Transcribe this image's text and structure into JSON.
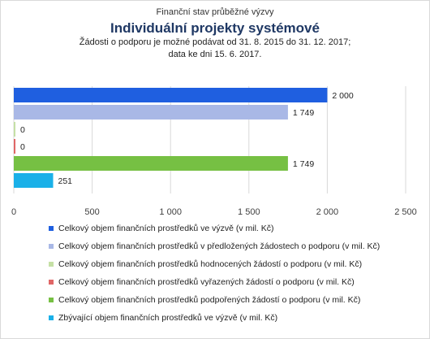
{
  "header": {
    "supertitle": "Finanční stav průběžné výzvy",
    "title": "Individuální projekty systémové",
    "subtitle_line1": "Žádosti o podporu je možné  podávat od 31. 8. 2015 do 31. 12. 2017;",
    "subtitle_line2": "data ke dni 15. 6. 2017."
  },
  "chart_data": {
    "type": "bar",
    "orientation": "horizontal",
    "xlim": [
      0,
      2500
    ],
    "xticks": [
      0,
      500,
      1000,
      1500,
      2000,
      2500
    ],
    "xtick_labels": [
      "0",
      "500",
      "1 000",
      "1 500",
      "2 000",
      "2 500"
    ],
    "grid": "vertical",
    "legend_position": "bottom",
    "series": [
      {
        "name": "Celkový objem finančních prostředků ve výzvě (v mil. Kč)",
        "value": 2000,
        "label": "2 000",
        "color": "#1f5fe0"
      },
      {
        "name": "Celkový objem finančních prostředků v předložených žádostech o podporu (v mil. Kč)",
        "value": 1749,
        "label": "1 749",
        "color": "#a9b8e6"
      },
      {
        "name": "Celkový objem finančních prostředků hodnocených žádostí o podporu (v mil. Kč)",
        "value": 0,
        "label": "0",
        "color": "#c5e0a5"
      },
      {
        "name": "Celkový objem finančních prostředků vyřazených žádostí o podporu (v mil. Kč)",
        "value": 0,
        "label": "0",
        "color": "#e06666"
      },
      {
        "name": "Celkový objem finančních prostředků podpořených žádostí o podporu (v mil. Kč)",
        "value": 1749,
        "label": "1 749",
        "color": "#76c043"
      },
      {
        "name": "Zbývající objem finančních prostředků ve výzvě (v mil. Kč)",
        "value": 251,
        "label": "251",
        "color": "#1ab0e8"
      }
    ]
  }
}
